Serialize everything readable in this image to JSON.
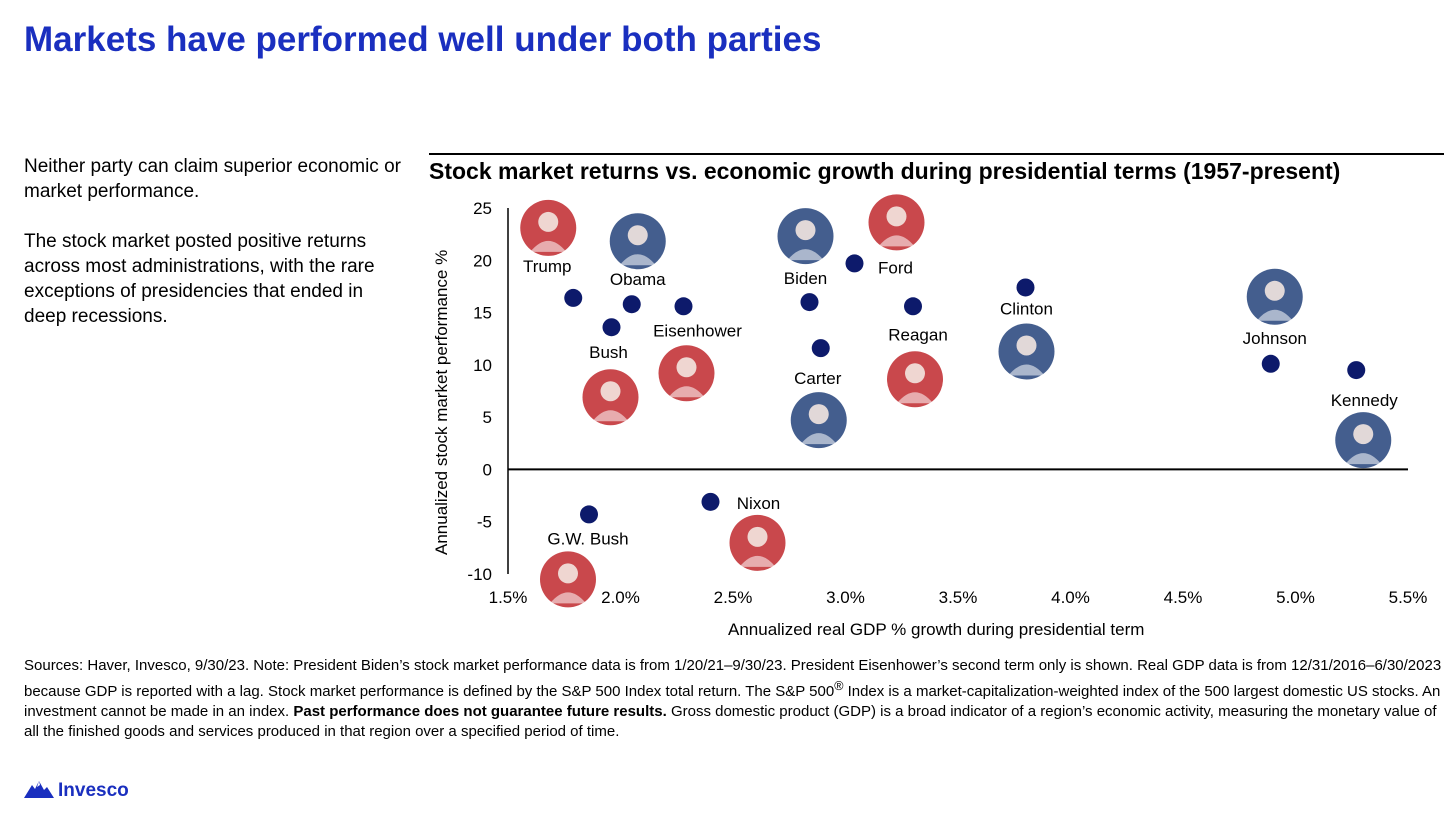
{
  "page": {
    "title": "Markets have performed well under both parties",
    "intro": [
      "Neither party can claim superior economic or market performance.",
      "The stock market posted positive returns across most administrations, with the rare exceptions of presidencies that ended in deep recessions."
    ],
    "footnote_a": "Sources: Haver, Invesco, 9/30/23. Note: President Biden’s stock market performance data is from 1/20/21–9/30/23. President Eisenhower’s second term only is shown. Real GDP data is from 12/31/2016–6/30/2023 because GDP is reported with a lag. Stock market performance is defined by the S&P 500 Index total return. The S&P 500",
    "footnote_sup": "®",
    "footnote_b": " Index is a market-capitalization-weighted index of the 500 largest domestic US stocks. An investment cannot be made in an index. ",
    "footnote_bold": "Past performance does not guarantee future results.",
    "footnote_c": " Gross domestic product (GDP) is a broad indicator of a region’s economic activity, measuring the monetary value of all the finished goods and services produced in that region over a specified period of time.",
    "logo_text": "Invesco",
    "brand_color": "#1a2fbf",
    "logo_icon": "mountain-logo-icon"
  },
  "chart_data": {
    "type": "scatter",
    "title": "Stock market returns vs. economic growth during presidential terms (1957-present)",
    "xlabel": "Annualized real GDP % growth during presidential term",
    "ylabel": "Annualized stock market performance %",
    "xlim": [
      1.5,
      5.5
    ],
    "ylim": [
      -10,
      25
    ],
    "x_ticks": [
      "1.5%",
      "2.0%",
      "2.5%",
      "3.0%",
      "3.5%",
      "4.0%",
      "4.5%",
      "5.0%",
      "5.5%"
    ],
    "y_ticks": [
      "25",
      "20",
      "15",
      "10",
      "5",
      "0",
      "-5",
      "-10"
    ],
    "point_color": "#0d1a6b",
    "party_colors": {
      "Republican": "#c0282d",
      "Democrat": "#23427a"
    },
    "points": [
      {
        "label": "Trump",
        "x": 1.79,
        "y": 16.4,
        "party": "Republican"
      },
      {
        "label": "Bush",
        "x": 1.96,
        "y": 13.6,
        "party": "Republican"
      },
      {
        "label": "Obama",
        "x": 2.05,
        "y": 15.8,
        "party": "Democrat"
      },
      {
        "label": "Eisenhower",
        "x": 2.28,
        "y": 15.6,
        "party": "Republican"
      },
      {
        "label": "G.W. Bush",
        "x": 1.86,
        "y": -4.3,
        "party": "Republican"
      },
      {
        "label": "Nixon",
        "x": 2.4,
        "y": -3.1,
        "party": "Republican"
      },
      {
        "label": "Biden",
        "x": 2.84,
        "y": 16.0,
        "party": "Democrat"
      },
      {
        "label": "Carter",
        "x": 2.89,
        "y": 11.6,
        "party": "Democrat"
      },
      {
        "label": "Ford",
        "x": 3.04,
        "y": 19.7,
        "party": "Republican"
      },
      {
        "label": "Reagan",
        "x": 3.3,
        "y": 15.6,
        "party": "Republican"
      },
      {
        "label": "Clinton",
        "x": 3.8,
        "y": 17.4,
        "party": "Democrat"
      },
      {
        "label": "Johnson",
        "x": 4.89,
        "y": 10.1,
        "party": "Democrat"
      },
      {
        "label": "Kennedy",
        "x": 5.27,
        "y": 9.5,
        "party": "Democrat"
      }
    ]
  }
}
